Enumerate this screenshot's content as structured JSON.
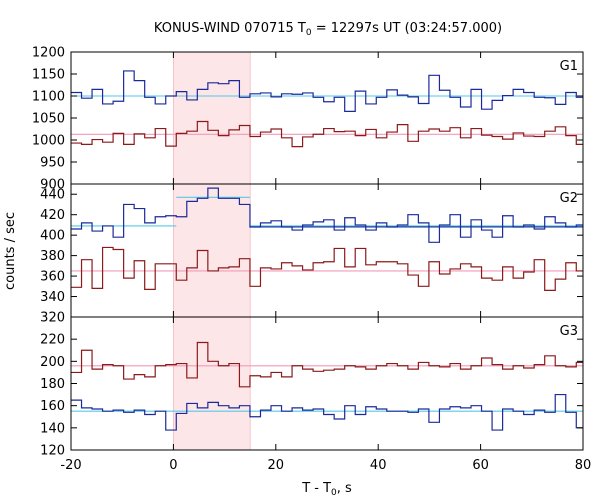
{
  "chart_data": {
    "type": "line",
    "title": "KONUS-WIND 070715 T",
    "title_sub": "0",
    "title_rest": " = 12297s UT (03:24:57.000)",
    "xlabel": "T - T",
    "xlabel_sub": "0",
    "xlabel_rest": ", s",
    "ylabel": "counts / sec",
    "xlim": [
      -20,
      80
    ],
    "x_ticks": [
      -20,
      0,
      20,
      40,
      60,
      80
    ],
    "shaded_interval": [
      0,
      15
    ],
    "colors": {
      "blue": "#1a2a9a",
      "red": "#8b1a1a",
      "cyan": "#55c8e8",
      "pink": "#f29ab9",
      "shade": "#fde6e8",
      "axis": "#000000"
    },
    "bin_edges": [
      -20,
      -17.944,
      -15.888,
      -13.832,
      -11.776,
      -9.72,
      -7.664,
      -5.608,
      -3.552,
      -1.496,
      0.56,
      2.616,
      4.672,
      6.728,
      8.784,
      10.84,
      12.896,
      14.952,
      17.008,
      19.064,
      21.12,
      23.176,
      25.232,
      27.288,
      29.344,
      31.4,
      33.456,
      35.512,
      37.568,
      39.624,
      41.68,
      43.736,
      45.792,
      47.848,
      49.904,
      51.96,
      54.016,
      56.072,
      58.128,
      60.184,
      62.24,
      64.296,
      66.352,
      68.408,
      70.464,
      72.52,
      74.576,
      76.632,
      78.688,
      80
    ],
    "panels": [
      {
        "label": "G1",
        "ylim": [
          900,
          1200
        ],
        "y_ticks": [
          900,
          950,
          1000,
          1050,
          1100,
          1150,
          1200
        ],
        "series": [
          {
            "color": "blue",
            "values": [
              1108,
              1095,
              1115,
              1082,
              1088,
              1157,
              1135,
              1097,
              1082,
              1100,
              1110,
              1091,
              1115,
              1130,
              1128,
              1135,
              1097,
              1105,
              1107,
              1098,
              1105,
              1104,
              1107,
              1097,
              1087,
              1097,
              1065,
              1111,
              1082,
              1097,
              1114,
              1102,
              1098,
              1083,
              1147,
              1113,
              1097,
              1075,
              1115,
              1070,
              1090,
              1101,
              1115,
              1108,
              1097,
              1096,
              1081,
              1108,
              1097
            ]
          },
          {
            "color": "red",
            "values": [
              993,
              990,
              1001,
              995,
              1015,
              990,
              1014,
              1005,
              1026,
              986,
              1015,
              1020,
              1042,
              1022,
              1010,
              1023,
              1033,
              1008,
              1018,
              1025,
              1005,
              985,
              1007,
              1013,
              1026,
              1019,
              1020,
              1010,
              1024,
              1005,
              1018,
              1035,
              997,
              1020,
              1025,
              1020,
              1028,
              1005,
              1026,
              1011,
              1008,
              1002,
              1016,
              1009,
              1008,
              1020,
              1030,
              1010,
              990
            ]
          }
        ],
        "fits": [
          {
            "color": "cyan",
            "segments": [
              {
                "x0": -20,
                "x1": 80,
                "y": 1100,
                "dash": false
              }
            ]
          },
          {
            "color": "pink",
            "segments": [
              {
                "x0": -20,
                "x1": 80,
                "y": 1013,
                "dash": false
              }
            ]
          }
        ]
      },
      {
        "label": "G2",
        "ylim": [
          320,
          450
        ],
        "y_ticks": [
          320,
          340,
          360,
          380,
          400,
          420,
          440
        ],
        "series": [
          {
            "color": "blue",
            "values": [
              406,
              412,
              404,
              409,
              398,
              430,
              426,
              412,
              418,
              419,
              418,
              433,
              436,
              446,
              436,
              436,
              430,
              408,
              412,
              414,
              408,
              405,
              410,
              413,
              415,
              405,
              417,
              410,
              405,
              412,
              408,
              410,
              420,
              412,
              393,
              410,
              420,
              398,
              415,
              405,
              398,
              419,
              408,
              410,
              406,
              418,
              412,
              408,
              410
            ]
          },
          {
            "color": "red",
            "values": [
              349,
              376,
              348,
              388,
              386,
              358,
              375,
              347,
              372,
              372,
              356,
              368,
              385,
              365,
              368,
              369,
              377,
              350,
              368,
              367,
              373,
              370,
              366,
              373,
              374,
              387,
              369,
              387,
              371,
              374,
              374,
              372,
              361,
              350,
              374,
              362,
              367,
              372,
              369,
              358,
              356,
              369,
              358,
              364,
              376,
              346,
              357,
              373,
              365
            ]
          }
        ],
        "fits": [
          {
            "color": "cyan",
            "segments": [
              {
                "x0": -20,
                "x1": 0.56,
                "y": 409,
                "dash": false
              },
              {
                "x0": 0.56,
                "x1": 14.952,
                "y": 437,
                "dash": false
              },
              {
                "x0": 14.952,
                "x1": 80,
                "y": 409,
                "dash": false
              }
            ]
          },
          {
            "color": "blue",
            "segments": [
              {
                "x0": 14.952,
                "x1": 80,
                "y": 408,
                "dash": true
              }
            ]
          },
          {
            "color": "pink",
            "segments": [
              {
                "x0": -20,
                "x1": 80,
                "y": 365,
                "dash": false
              }
            ]
          }
        ]
      },
      {
        "label": "G3",
        "ylim": [
          120,
          240
        ],
        "y_ticks": [
          120,
          140,
          160,
          180,
          200,
          220
        ],
        "series": [
          {
            "color": "red",
            "values": [
              190,
              210,
              193,
              197,
              196,
              184,
              188,
              186,
              196,
              197,
              198,
              185,
              217,
              200,
              196,
              198,
              177,
              187,
              186,
              190,
              186,
              196,
              193,
              191,
              192,
              193,
              196,
              195,
              193,
              196,
              198,
              196,
              193,
              199,
              196,
              195,
              198,
              193,
              196,
              203,
              197,
              193,
              196,
              194,
              197,
              205,
              196,
              195,
              199
            ]
          },
          {
            "color": "blue",
            "values": [
              165,
              158,
              157,
              155,
              156,
              154,
              156,
              152,
              155,
              138,
              153,
              162,
              158,
              163,
              160,
              158,
              160,
              150,
              156,
              160,
              155,
              158,
              156,
              157,
              152,
              148,
              160,
              152,
              159,
              157,
              155,
              155,
              154,
              157,
              145,
              157,
              159,
              158,
              160,
              155,
              138,
              157,
              155,
              152,
              156,
              154,
              170,
              154,
              140
            ]
          }
        ],
        "fits": [
          {
            "color": "pink",
            "segments": [
              {
                "x0": -20,
                "x1": 80,
                "y": 196,
                "dash": false
              }
            ]
          },
          {
            "color": "cyan",
            "segments": [
              {
                "x0": -20,
                "x1": 80,
                "y": 155,
                "dash": false
              }
            ]
          }
        ]
      }
    ]
  }
}
